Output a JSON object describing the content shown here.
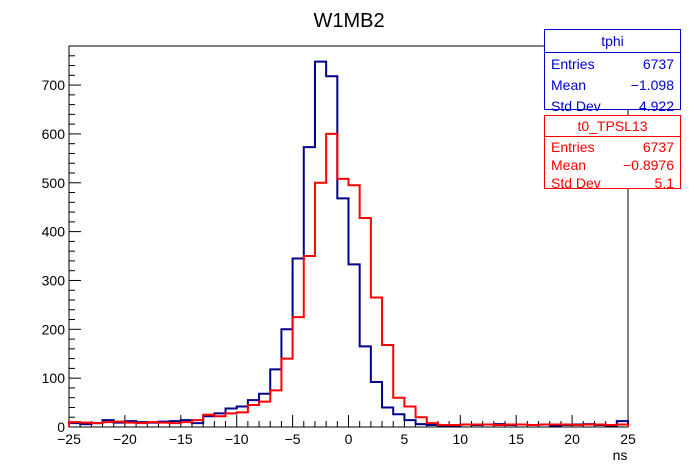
{
  "chart_data": {
    "type": "histogram-step",
    "title": "W1MB2",
    "xlabel": "ns",
    "ylabel": "",
    "xlim": [
      -25,
      25
    ],
    "ylim": [
      0,
      780
    ],
    "bin_width": 1,
    "x_ticks": [
      -25,
      -20,
      -15,
      -10,
      -5,
      0,
      5,
      10,
      15,
      20,
      25
    ],
    "y_ticks": [
      0,
      100,
      200,
      300,
      400,
      500,
      600,
      700
    ],
    "series": [
      {
        "name": "tphi",
        "color": "#00008b",
        "values": [
          8,
          6,
          8,
          14,
          9,
          12,
          10,
          9,
          11,
          12,
          14,
          8,
          22,
          28,
          38,
          42,
          55,
          68,
          118,
          200,
          345,
          573,
          748,
          718,
          468,
          333,
          165,
          92,
          40,
          26,
          14,
          6,
          4,
          3,
          3,
          5,
          4,
          5,
          6,
          4,
          5,
          4,
          5,
          3,
          4,
          5,
          6,
          4,
          3,
          12
        ]
      },
      {
        "name": "t0_TPSL13",
        "color": "#ff0000",
        "values": [
          10,
          9,
          8,
          10,
          11,
          9,
          8,
          10,
          9,
          8,
          10,
          14,
          25,
          22,
          28,
          30,
          45,
          52,
          75,
          140,
          225,
          350,
          500,
          600,
          508,
          495,
          428,
          265,
          168,
          60,
          42,
          20,
          8,
          4,
          4,
          5,
          5,
          5,
          4,
          5,
          5,
          4,
          5,
          5,
          5,
          4,
          5,
          5,
          4,
          5
        ]
      }
    ],
    "stats": [
      {
        "name": "tphi",
        "entries": "6737",
        "mean": "−1.098",
        "std_dev": "4.922"
      },
      {
        "name": "t0_TPSL13",
        "entries": "6737",
        "mean": "−0.8976",
        "std_dev": "5.1"
      }
    ]
  },
  "stat_labels": {
    "entries": "Entries",
    "mean": "Mean",
    "std_dev": "Std Dev"
  },
  "colors": {
    "blue": "#0000cc",
    "red": "#ff0000",
    "axis": "#000000"
  }
}
